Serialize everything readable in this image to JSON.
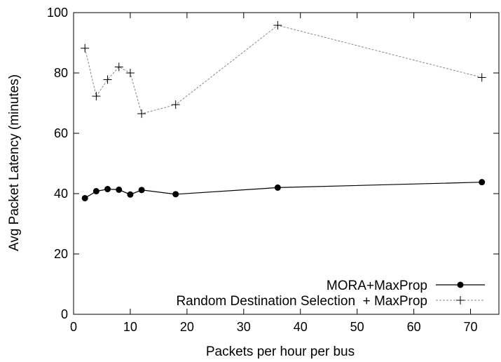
{
  "chart_data": {
    "type": "line",
    "xlabel": "Packets per hour per bus",
    "ylabel": "Avg Packet Latency (minutes)",
    "xlim": [
      0,
      75
    ],
    "ylim": [
      0,
      100
    ],
    "xticks": [
      0,
      10,
      20,
      30,
      40,
      50,
      60,
      70
    ],
    "yticks": [
      0,
      20,
      40,
      60,
      80,
      100
    ],
    "grid": false,
    "legend_position": "bottom-right",
    "series": [
      {
        "name": "MORA+MaxProp",
        "style": "solid",
        "marker": "filled-circle",
        "color": "#000000",
        "x": [
          2,
          4,
          6,
          8,
          10,
          12,
          18,
          36,
          72
        ],
        "y": [
          38.5,
          40.8,
          41.5,
          41.3,
          39.7,
          41.2,
          39.8,
          42.0,
          43.8
        ]
      },
      {
        "name": "Random Destination Selection  + MaxProp",
        "style": "dashed",
        "marker": "plus",
        "color": "#888888",
        "x": [
          2,
          4,
          6,
          8,
          10,
          12,
          18,
          36,
          72
        ],
        "y": [
          88.2,
          72.3,
          77.8,
          82.0,
          80.0,
          66.5,
          69.5,
          95.8,
          78.5
        ]
      }
    ]
  }
}
